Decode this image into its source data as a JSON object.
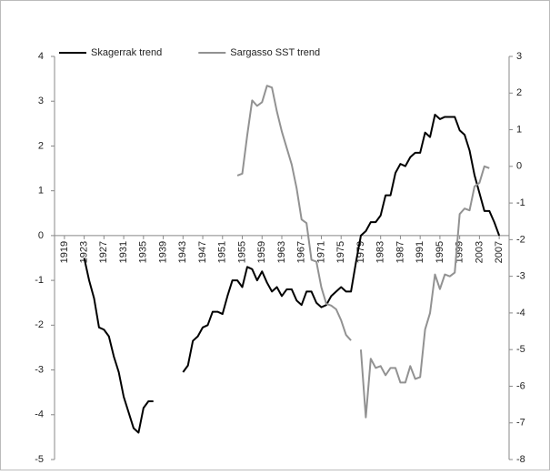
{
  "chart_data": {
    "type": "line",
    "x": [
      1923,
      1924,
      1925,
      1926,
      1927,
      1928,
      1929,
      1930,
      1931,
      1932,
      1933,
      1934,
      1935,
      1936,
      1937,
      1938,
      1939,
      1940,
      1941,
      1942,
      1943,
      1944,
      1945,
      1946,
      1947,
      1948,
      1949,
      1950,
      1951,
      1952,
      1953,
      1954,
      1955,
      1956,
      1957,
      1958,
      1959,
      1960,
      1961,
      1962,
      1963,
      1964,
      1965,
      1966,
      1967,
      1968,
      1969,
      1970,
      1971,
      1972,
      1973,
      1974,
      1975,
      1976,
      1977,
      1978,
      1979,
      1980,
      1981,
      1982,
      1983,
      1984,
      1985,
      1986,
      1987,
      1988,
      1989,
      1990,
      1991,
      1992,
      1993,
      1994,
      1995,
      1996,
      1997,
      1998,
      1999,
      2000,
      2001,
      2002,
      2003,
      2004,
      2005,
      2006,
      2007
    ],
    "series": [
      {
        "name": "Skagerrak trend",
        "color": "#000000",
        "values": [
          -0.5,
          -1.0,
          -1.4,
          -2.05,
          -2.1,
          -2.25,
          -2.7,
          -3.05,
          -3.6,
          -3.95,
          -4.3,
          -4.4,
          -3.85,
          -3.7,
          -3.7,
          null,
          null,
          null,
          null,
          null,
          -3.05,
          -2.9,
          -2.35,
          -2.25,
          -2.05,
          -2.0,
          -1.7,
          -1.7,
          -1.75,
          -1.35,
          -1.0,
          -1.0,
          -1.15,
          -0.7,
          -0.75,
          -1.0,
          -0.8,
          -1.05,
          -1.25,
          -1.15,
          -1.35,
          -1.2,
          -1.2,
          -1.45,
          -1.55,
          -1.25,
          -1.25,
          -1.5,
          -1.6,
          -1.55,
          -1.35,
          -1.25,
          -1.15,
          -1.25,
          -1.25,
          -0.6,
          0.0,
          0.1,
          0.3,
          0.3,
          0.45,
          0.9,
          0.9,
          1.4,
          1.6,
          1.55,
          1.75,
          1.85,
          1.85,
          2.3,
          2.2,
          2.7,
          2.6,
          2.65,
          2.65,
          2.65,
          2.35,
          2.25,
          1.9,
          1.35,
          0.95,
          0.55,
          0.55,
          0.3,
          0.0
        ]
      },
      {
        "name": "Sargasso SST trend",
        "color": "#929292",
        "axis": "y2",
        "values": [
          null,
          null,
          null,
          null,
          null,
          null,
          null,
          null,
          null,
          null,
          null,
          null,
          null,
          null,
          null,
          null,
          null,
          null,
          null,
          null,
          null,
          null,
          null,
          null,
          null,
          null,
          null,
          null,
          null,
          null,
          null,
          -0.25,
          -0.2,
          0.85,
          1.8,
          1.65,
          1.75,
          2.2,
          2.15,
          1.5,
          0.95,
          0.5,
          0.05,
          -0.6,
          -1.45,
          -1.55,
          -2.55,
          -2.6,
          -3.3,
          -3.75,
          -3.8,
          -3.9,
          -4.2,
          -4.6,
          -4.75,
          null,
          -5.0,
          -6.85,
          -5.25,
          -5.5,
          -5.45,
          -5.7,
          -5.5,
          -5.5,
          -5.9,
          -5.9,
          -5.45,
          -5.8,
          -5.75,
          -4.45,
          -4.0,
          -2.95,
          -3.35,
          -2.95,
          -3.0,
          -2.9,
          -1.3,
          -1.15,
          -1.2,
          -0.55,
          -0.45,
          0.0,
          -0.05,
          null,
          null
        ]
      }
    ],
    "xlim": [
      1917,
      2009
    ],
    "xticks": [
      1919,
      1923,
      1927,
      1931,
      1935,
      1939,
      1943,
      1947,
      1951,
      1955,
      1959,
      1963,
      1967,
      1971,
      1975,
      1979,
      1983,
      1987,
      1991,
      1995,
      1999,
      2003,
      2007
    ],
    "ylim": [
      -5,
      4
    ],
    "yticks": [
      -5,
      -4,
      -3,
      -2,
      -1,
      0,
      1,
      2,
      3,
      4
    ],
    "y2lim": [
      -8,
      3
    ],
    "y2ticks": [
      -8,
      -7,
      -6,
      -5,
      -4,
      -3,
      -2,
      -1,
      0,
      1,
      2,
      3
    ],
    "legend": "top"
  }
}
